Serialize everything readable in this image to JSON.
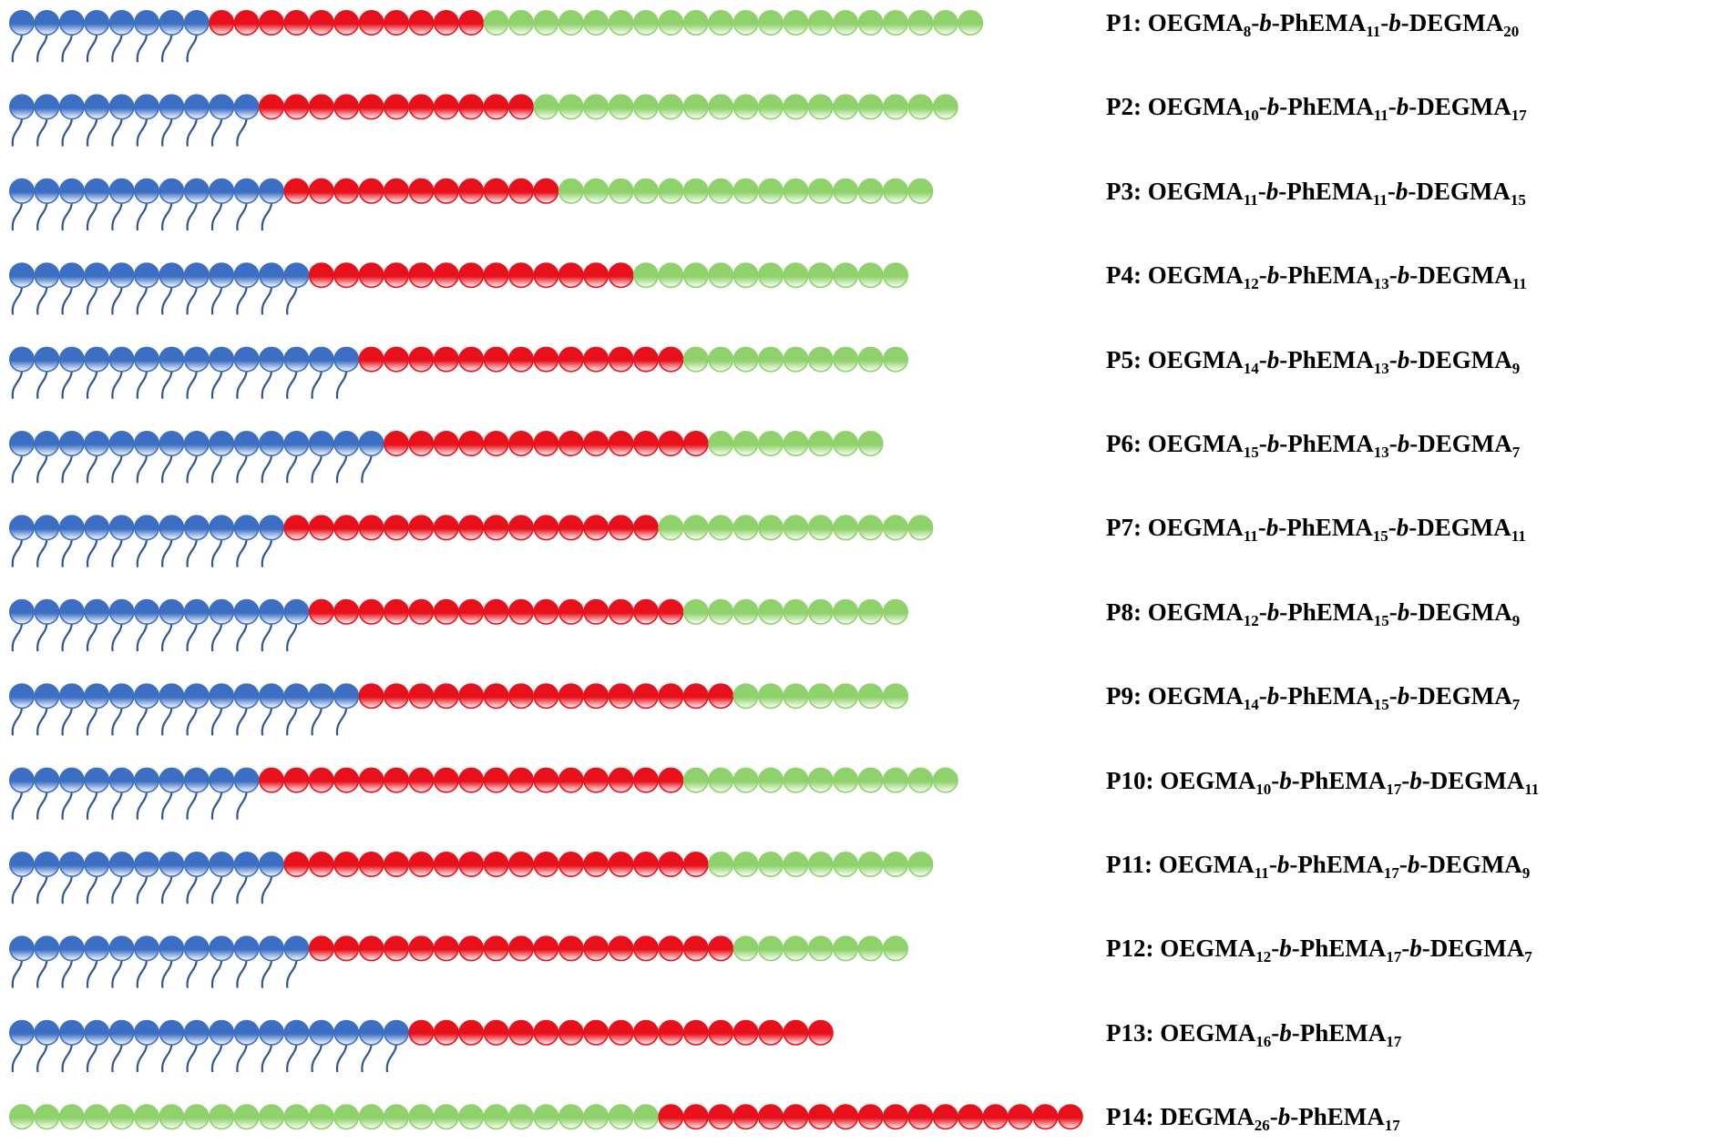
{
  "monomers": [
    {
      "name": "OEGMA",
      "color": "#3c6fc4",
      "tails": true
    },
    {
      "name": "PhEMA",
      "color": "#e8101a",
      "tails": false
    },
    {
      "name": "DEGMA",
      "color": "#8fd16a",
      "tails": false
    }
  ],
  "link": {
    "dash": "-",
    "letter": "b"
  },
  "rows": [
    {
      "id": "P1:",
      "blocks": [
        {
          "monomer": 0,
          "count": 8
        },
        {
          "monomer": 1,
          "count": 11
        },
        {
          "monomer": 2,
          "count": 20
        }
      ]
    },
    {
      "id": "P2:",
      "blocks": [
        {
          "monomer": 0,
          "count": 10
        },
        {
          "monomer": 1,
          "count": 11
        },
        {
          "monomer": 2,
          "count": 17
        }
      ]
    },
    {
      "id": "P3:",
      "blocks": [
        {
          "monomer": 0,
          "count": 11
        },
        {
          "monomer": 1,
          "count": 11
        },
        {
          "monomer": 2,
          "count": 15
        }
      ]
    },
    {
      "id": "P4:",
      "blocks": [
        {
          "monomer": 0,
          "count": 12
        },
        {
          "monomer": 1,
          "count": 13
        },
        {
          "monomer": 2,
          "count": 11
        }
      ]
    },
    {
      "id": "P5:",
      "blocks": [
        {
          "monomer": 0,
          "count": 14
        },
        {
          "monomer": 1,
          "count": 13
        },
        {
          "monomer": 2,
          "count": 9
        }
      ]
    },
    {
      "id": "P6:",
      "blocks": [
        {
          "monomer": 0,
          "count": 15
        },
        {
          "monomer": 1,
          "count": 13
        },
        {
          "monomer": 2,
          "count": 7
        }
      ]
    },
    {
      "id": "P7:",
      "blocks": [
        {
          "monomer": 0,
          "count": 11
        },
        {
          "monomer": 1,
          "count": 15
        },
        {
          "monomer": 2,
          "count": 11
        }
      ]
    },
    {
      "id": "P8:",
      "blocks": [
        {
          "monomer": 0,
          "count": 12
        },
        {
          "monomer": 1,
          "count": 15
        },
        {
          "monomer": 2,
          "count": 9
        }
      ]
    },
    {
      "id": "P9:",
      "blocks": [
        {
          "monomer": 0,
          "count": 14
        },
        {
          "monomer": 1,
          "count": 15
        },
        {
          "monomer": 2,
          "count": 7
        }
      ]
    },
    {
      "id": "P10:",
      "blocks": [
        {
          "monomer": 0,
          "count": 10
        },
        {
          "monomer": 1,
          "count": 17
        },
        {
          "monomer": 2,
          "count": 11
        }
      ]
    },
    {
      "id": "P11:",
      "blocks": [
        {
          "monomer": 0,
          "count": 11
        },
        {
          "monomer": 1,
          "count": 17
        },
        {
          "monomer": 2,
          "count": 9
        }
      ]
    },
    {
      "id": "P12:",
      "blocks": [
        {
          "monomer": 0,
          "count": 12
        },
        {
          "monomer": 1,
          "count": 17
        },
        {
          "monomer": 2,
          "count": 7
        }
      ]
    },
    {
      "id": "P13:",
      "blocks": [
        {
          "monomer": 0,
          "count": 16
        },
        {
          "monomer": 1,
          "count": 17
        }
      ]
    },
    {
      "id": "P14:",
      "blocks": [
        {
          "monomer": 2,
          "count": 26
        },
        {
          "monomer": 1,
          "count": 17
        }
      ]
    }
  ]
}
